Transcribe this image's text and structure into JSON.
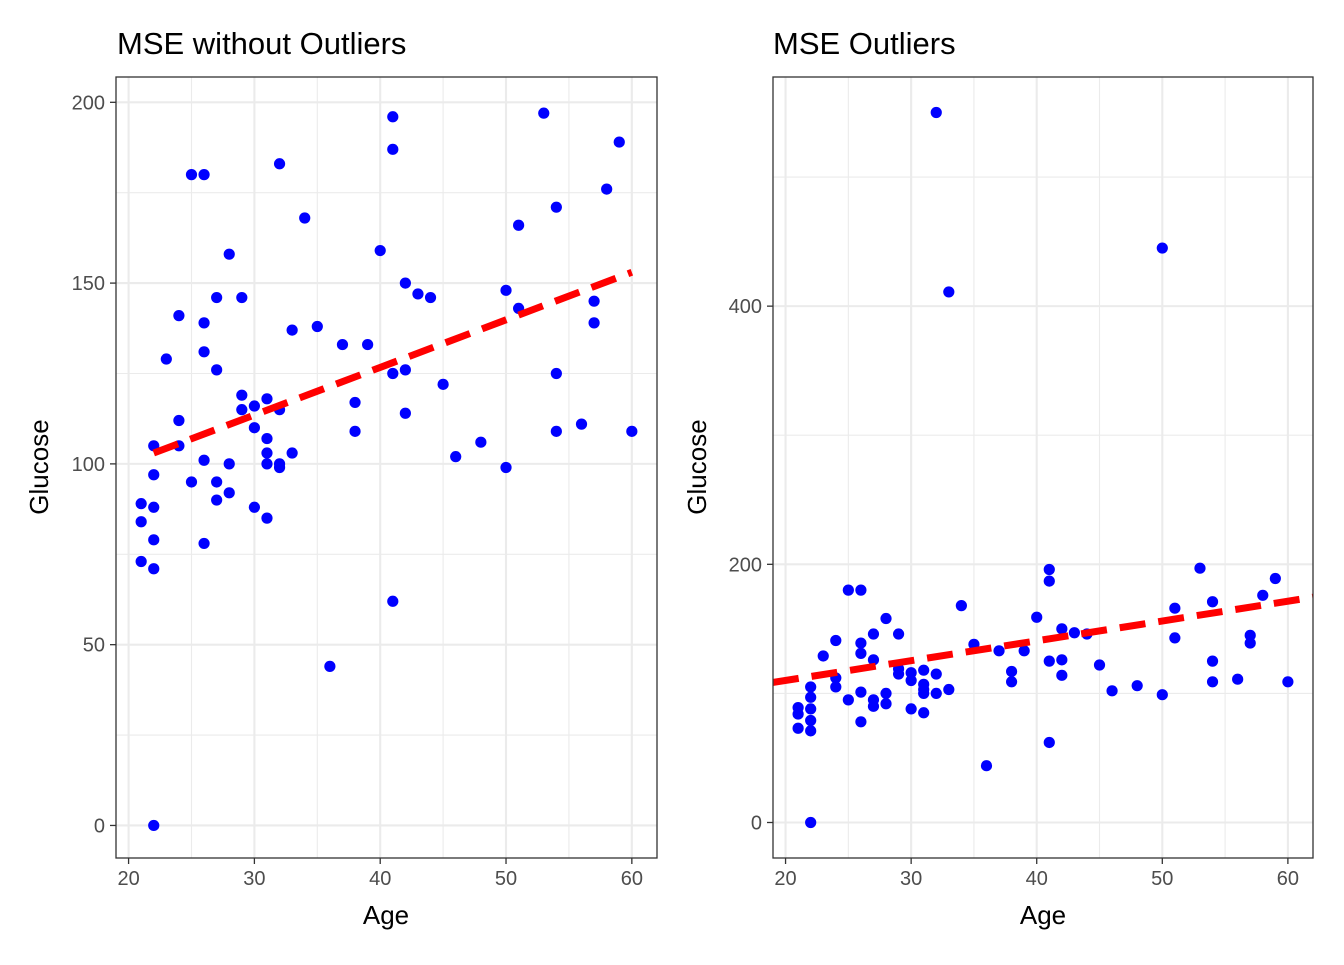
{
  "chart_data": [
    {
      "type": "scatter",
      "title": "MSE without Outliers",
      "xlabel": "Age",
      "ylabel": "Glucose",
      "xlim": [
        19,
        62
      ],
      "ylim": [
        -9,
        207
      ],
      "x_ticks": [
        20,
        30,
        40,
        50,
        60
      ],
      "y_ticks": [
        0,
        50,
        100,
        150,
        200
      ],
      "grid": true,
      "point_color": "#0000ff",
      "fit_line_color": "#ff0000",
      "fit_line_style": "dashed",
      "fit_line": {
        "x": [
          22,
          60
        ],
        "y": [
          103,
          153
        ]
      },
      "points": [
        {
          "x": 21,
          "y": 89
        },
        {
          "x": 21,
          "y": 84
        },
        {
          "x": 21,
          "y": 73
        },
        {
          "x": 22,
          "y": 105
        },
        {
          "x": 22,
          "y": 97
        },
        {
          "x": 22,
          "y": 88
        },
        {
          "x": 22,
          "y": 79
        },
        {
          "x": 22,
          "y": 71
        },
        {
          "x": 22,
          "y": 0
        },
        {
          "x": 23,
          "y": 129
        },
        {
          "x": 24,
          "y": 141
        },
        {
          "x": 24,
          "y": 112
        },
        {
          "x": 24,
          "y": 105
        },
        {
          "x": 25,
          "y": 180
        },
        {
          "x": 25,
          "y": 95
        },
        {
          "x": 26,
          "y": 180
        },
        {
          "x": 26,
          "y": 139
        },
        {
          "x": 26,
          "y": 131
        },
        {
          "x": 26,
          "y": 101
        },
        {
          "x": 26,
          "y": 78
        },
        {
          "x": 27,
          "y": 146
        },
        {
          "x": 27,
          "y": 126
        },
        {
          "x": 27,
          "y": 95
        },
        {
          "x": 27,
          "y": 90
        },
        {
          "x": 28,
          "y": 158
        },
        {
          "x": 28,
          "y": 100
        },
        {
          "x": 28,
          "y": 92
        },
        {
          "x": 29,
          "y": 146
        },
        {
          "x": 29,
          "y": 119
        },
        {
          "x": 29,
          "y": 115
        },
        {
          "x": 30,
          "y": 116
        },
        {
          "x": 30,
          "y": 110
        },
        {
          "x": 30,
          "y": 88
        },
        {
          "x": 31,
          "y": 118
        },
        {
          "x": 31,
          "y": 107
        },
        {
          "x": 31,
          "y": 103
        },
        {
          "x": 31,
          "y": 100
        },
        {
          "x": 31,
          "y": 85
        },
        {
          "x": 32,
          "y": 183
        },
        {
          "x": 32,
          "y": 115
        },
        {
          "x": 32,
          "y": 100
        },
        {
          "x": 32,
          "y": 99
        },
        {
          "x": 33,
          "y": 137
        },
        {
          "x": 33,
          "y": 103
        },
        {
          "x": 34,
          "y": 168
        },
        {
          "x": 35,
          "y": 138
        },
        {
          "x": 36,
          "y": 44
        },
        {
          "x": 37,
          "y": 133
        },
        {
          "x": 38,
          "y": 117
        },
        {
          "x": 38,
          "y": 109
        },
        {
          "x": 39,
          "y": 133
        },
        {
          "x": 40,
          "y": 159
        },
        {
          "x": 41,
          "y": 196
        },
        {
          "x": 41,
          "y": 187
        },
        {
          "x": 41,
          "y": 125
        },
        {
          "x": 41,
          "y": 62
        },
        {
          "x": 42,
          "y": 150
        },
        {
          "x": 42,
          "y": 126
        },
        {
          "x": 42,
          "y": 114
        },
        {
          "x": 43,
          "y": 147
        },
        {
          "x": 44,
          "y": 146
        },
        {
          "x": 45,
          "y": 122
        },
        {
          "x": 46,
          "y": 102
        },
        {
          "x": 48,
          "y": 106
        },
        {
          "x": 50,
          "y": 148
        },
        {
          "x": 50,
          "y": 99
        },
        {
          "x": 51,
          "y": 166
        },
        {
          "x": 51,
          "y": 143
        },
        {
          "x": 53,
          "y": 197
        },
        {
          "x": 54,
          "y": 171
        },
        {
          "x": 54,
          "y": 125
        },
        {
          "x": 54,
          "y": 109
        },
        {
          "x": 56,
          "y": 111
        },
        {
          "x": 57,
          "y": 145
        },
        {
          "x": 57,
          "y": 139
        },
        {
          "x": 58,
          "y": 176
        },
        {
          "x": 59,
          "y": 189
        },
        {
          "x": 60,
          "y": 109
        }
      ]
    },
    {
      "type": "scatter",
      "title": "MSE Outliers",
      "xlabel": "Age",
      "ylabel": "Glucose",
      "xlim": [
        19,
        62
      ],
      "ylim": [
        -27.5,
        577.5
      ],
      "x_ticks": [
        20,
        30,
        40,
        50,
        60
      ],
      "y_ticks": [
        0,
        200,
        400
      ],
      "grid": true,
      "point_color": "#0000ff",
      "fit_line_color": "#ff0000",
      "fit_line_style": "dashed",
      "fit_line": {
        "x": [
          19,
          62
        ],
        "y": [
          108.5,
          174.5
        ]
      },
      "points": [
        {
          "x": 21,
          "y": 89
        },
        {
          "x": 21,
          "y": 84
        },
        {
          "x": 21,
          "y": 73
        },
        {
          "x": 22,
          "y": 105
        },
        {
          "x": 22,
          "y": 97
        },
        {
          "x": 22,
          "y": 88
        },
        {
          "x": 22,
          "y": 79
        },
        {
          "x": 22,
          "y": 71
        },
        {
          "x": 22,
          "y": 0
        },
        {
          "x": 23,
          "y": 129
        },
        {
          "x": 24,
          "y": 141
        },
        {
          "x": 24,
          "y": 112
        },
        {
          "x": 24,
          "y": 105
        },
        {
          "x": 25,
          "y": 180
        },
        {
          "x": 25,
          "y": 95
        },
        {
          "x": 26,
          "y": 180
        },
        {
          "x": 26,
          "y": 139
        },
        {
          "x": 26,
          "y": 131
        },
        {
          "x": 26,
          "y": 101
        },
        {
          "x": 26,
          "y": 78
        },
        {
          "x": 27,
          "y": 146
        },
        {
          "x": 27,
          "y": 126
        },
        {
          "x": 27,
          "y": 95
        },
        {
          "x": 27,
          "y": 90
        },
        {
          "x": 28,
          "y": 158
        },
        {
          "x": 28,
          "y": 100
        },
        {
          "x": 28,
          "y": 92
        },
        {
          "x": 29,
          "y": 146
        },
        {
          "x": 29,
          "y": 119
        },
        {
          "x": 29,
          "y": 115
        },
        {
          "x": 30,
          "y": 116
        },
        {
          "x": 30,
          "y": 110
        },
        {
          "x": 30,
          "y": 88
        },
        {
          "x": 31,
          "y": 118
        },
        {
          "x": 31,
          "y": 107
        },
        {
          "x": 31,
          "y": 103
        },
        {
          "x": 31,
          "y": 100
        },
        {
          "x": 31,
          "y": 85
        },
        {
          "x": 32,
          "y": 550
        },
        {
          "x": 32,
          "y": 115
        },
        {
          "x": 32,
          "y": 100
        },
        {
          "x": 33,
          "y": 411
        },
        {
          "x": 33,
          "y": 103
        },
        {
          "x": 34,
          "y": 168
        },
        {
          "x": 35,
          "y": 138
        },
        {
          "x": 36,
          "y": 44
        },
        {
          "x": 37,
          "y": 133
        },
        {
          "x": 38,
          "y": 117
        },
        {
          "x": 38,
          "y": 109
        },
        {
          "x": 39,
          "y": 133
        },
        {
          "x": 40,
          "y": 159
        },
        {
          "x": 41,
          "y": 196
        },
        {
          "x": 41,
          "y": 187
        },
        {
          "x": 41,
          "y": 125
        },
        {
          "x": 41,
          "y": 62
        },
        {
          "x": 42,
          "y": 150
        },
        {
          "x": 42,
          "y": 126
        },
        {
          "x": 42,
          "y": 114
        },
        {
          "x": 43,
          "y": 147
        },
        {
          "x": 44,
          "y": 146
        },
        {
          "x": 45,
          "y": 122
        },
        {
          "x": 46,
          "y": 102
        },
        {
          "x": 48,
          "y": 106
        },
        {
          "x": 50,
          "y": 445
        },
        {
          "x": 50,
          "y": 99
        },
        {
          "x": 51,
          "y": 166
        },
        {
          "x": 51,
          "y": 143
        },
        {
          "x": 53,
          "y": 197
        },
        {
          "x": 54,
          "y": 171
        },
        {
          "x": 54,
          "y": 125
        },
        {
          "x": 54,
          "y": 109
        },
        {
          "x": 56,
          "y": 111
        },
        {
          "x": 57,
          "y": 145
        },
        {
          "x": 57,
          "y": 139
        },
        {
          "x": 58,
          "y": 176
        },
        {
          "x": 59,
          "y": 189
        },
        {
          "x": 60,
          "y": 109
        }
      ]
    }
  ]
}
